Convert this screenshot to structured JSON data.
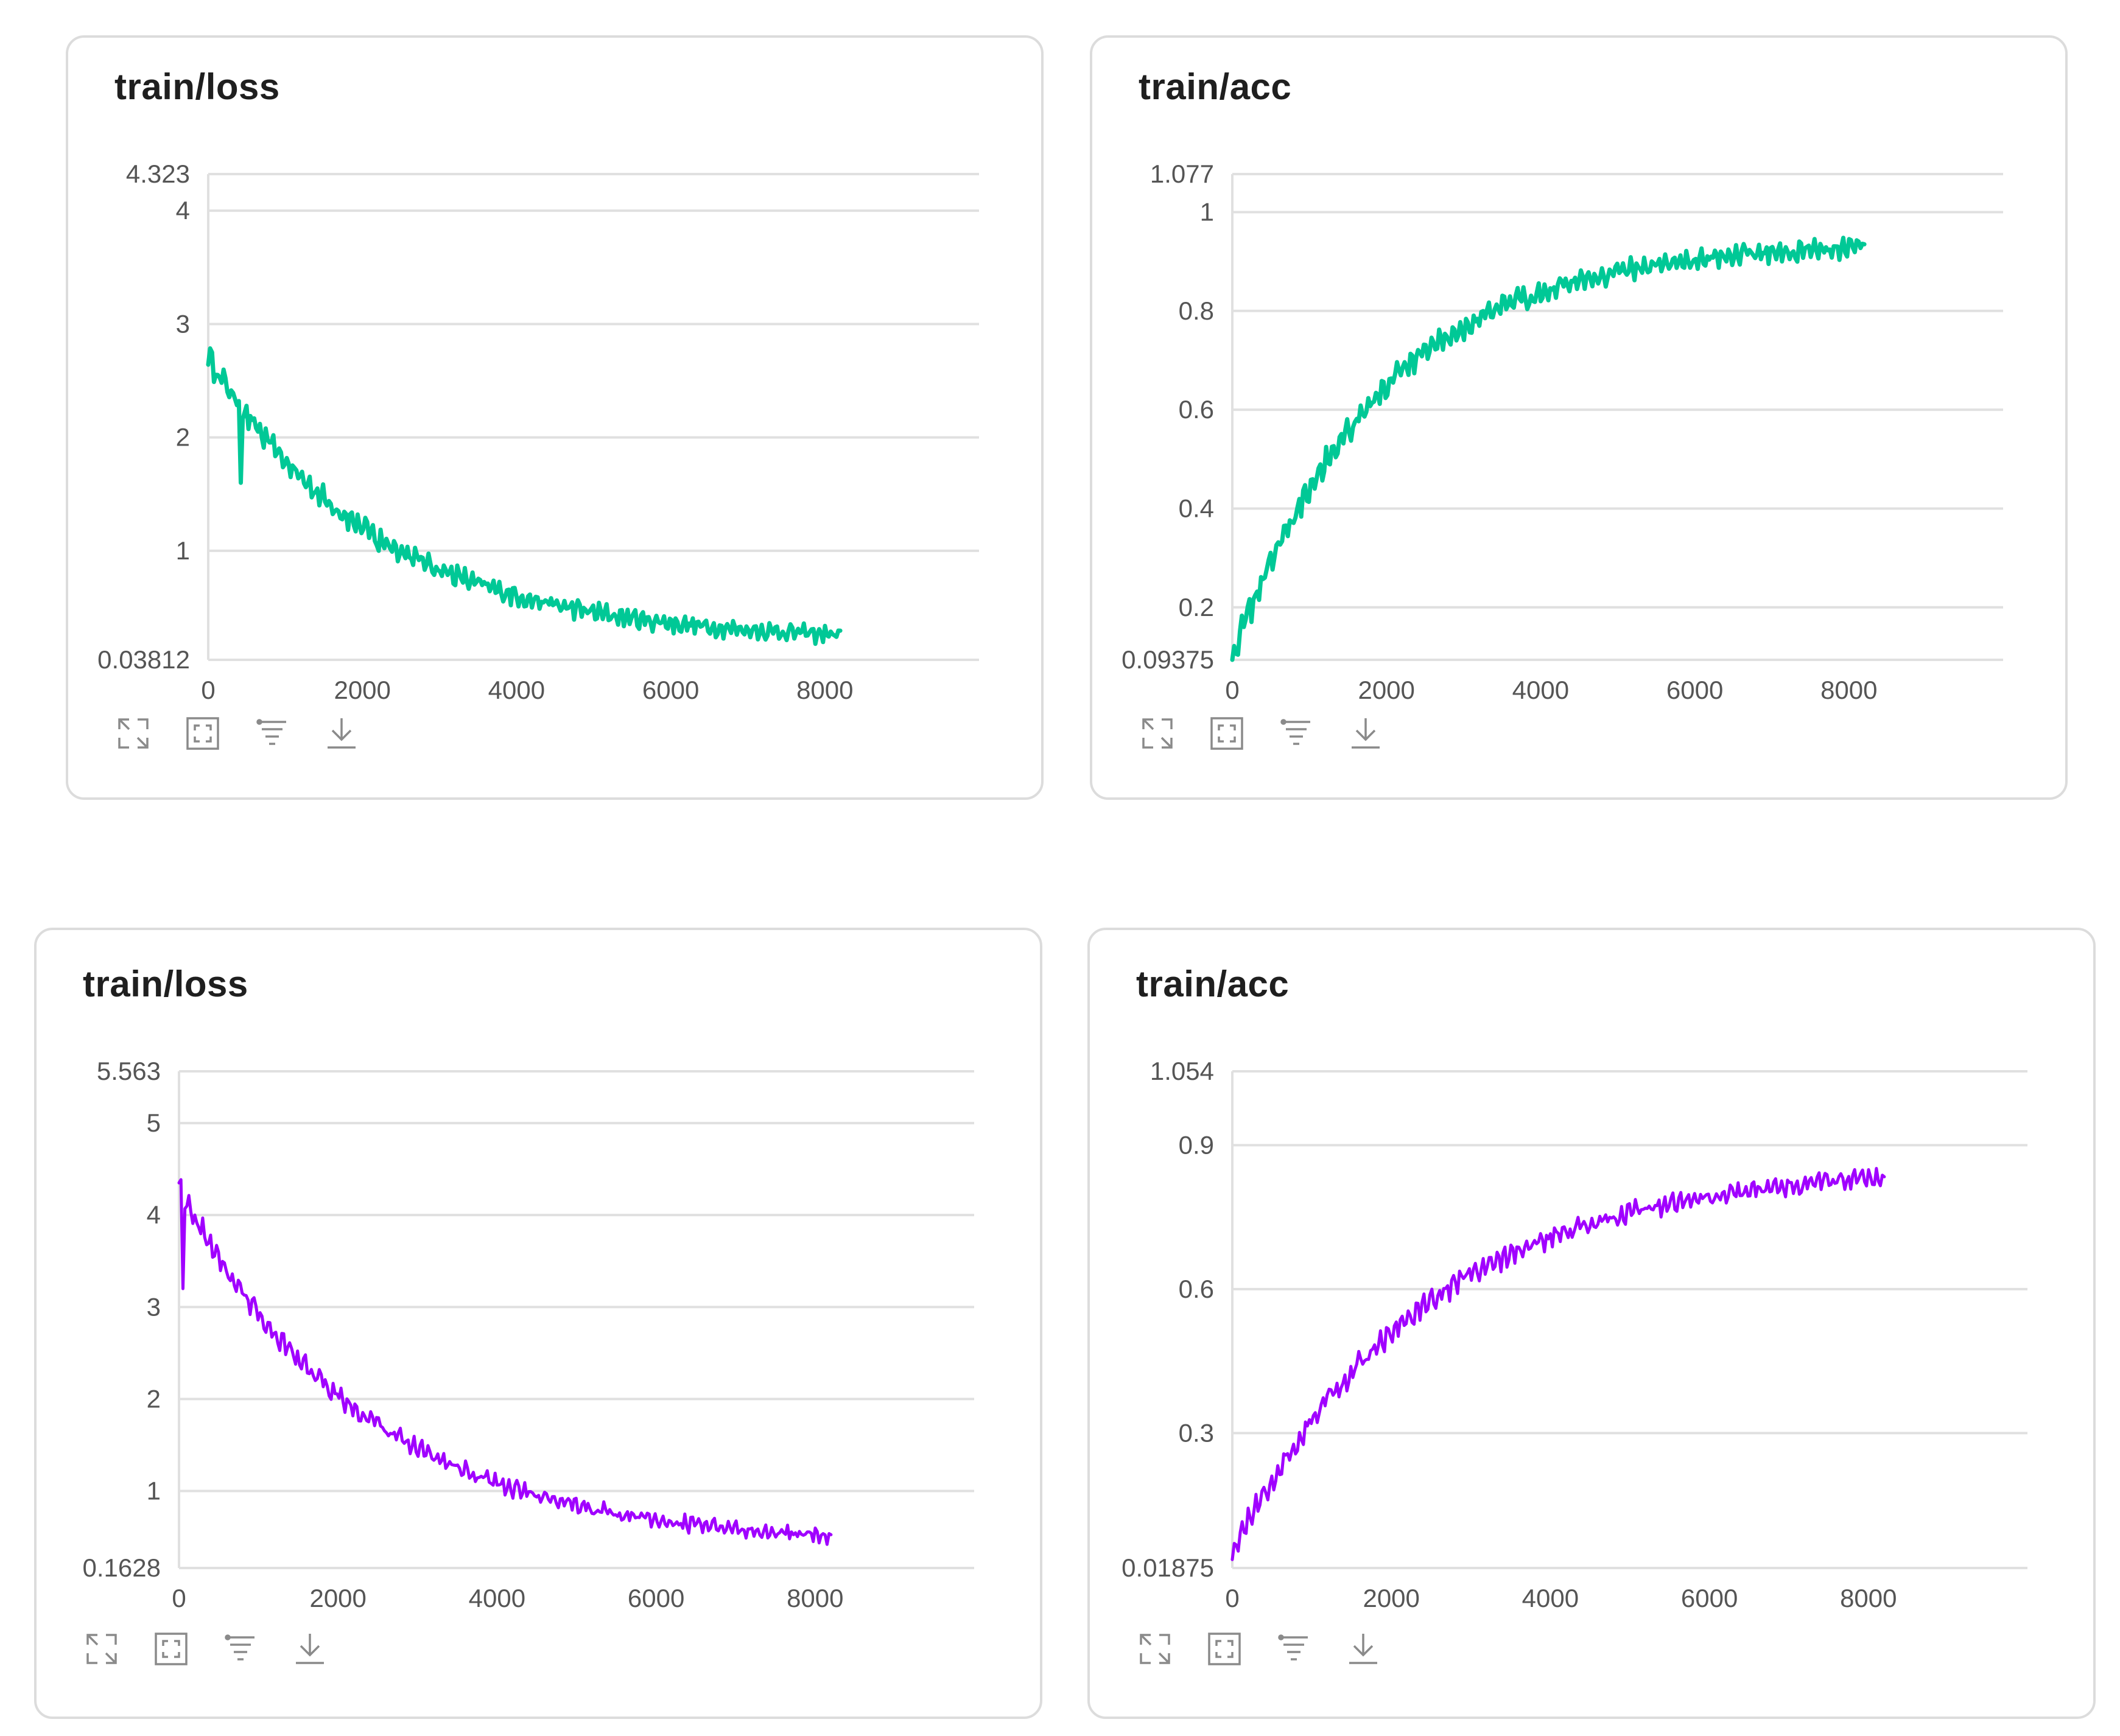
{
  "colors": {
    "green": "#00c896",
    "purple": "#a000ff",
    "grid": "#e0e0e0",
    "tick": "#555555"
  },
  "toolbar": [
    "expand-icon",
    "fit-icon",
    "filter-icon",
    "download-icon"
  ],
  "chart_data": [
    {
      "type": "line",
      "title": "train/loss",
      "color": "#00c896",
      "xlim": [
        0,
        10000
      ],
      "ylim": [
        0.03812,
        4.323
      ],
      "xticks": [
        0,
        2000,
        4000,
        6000,
        8000
      ],
      "yticks": [
        0.03812,
        1,
        2,
        3,
        4,
        4.323
      ],
      "ytick_labels": [
        "0.03812",
        "1",
        "2",
        "3",
        "4",
        "4.323"
      ],
      "xtick_labels": [
        "0",
        "2000",
        "4000",
        "6000",
        "8000"
      ],
      "trend": {
        "start": 2.7,
        "end": 0.2,
        "tau": 2200,
        "noise": 0.12,
        "spike": [
          [
            40,
            2.75
          ],
          [
            240,
            2.4
          ],
          [
            420,
            1.6
          ],
          [
            2200,
            1.0
          ]
        ]
      },
      "x_end": 8200
    },
    {
      "type": "line",
      "title": "train/acc",
      "color": "#00c896",
      "xlim": [
        0,
        10000
      ],
      "ylim": [
        0.09375,
        1.077
      ],
      "xticks": [
        0,
        2000,
        4000,
        6000,
        8000
      ],
      "yticks": [
        0.09375,
        0.2,
        0.4,
        0.6,
        0.8,
        1,
        1.077
      ],
      "ytick_labels": [
        "0.09375",
        "0.2",
        "0.4",
        "0.6",
        "0.8",
        "1",
        "1.077"
      ],
      "xtick_labels": [
        "0",
        "2000",
        "4000",
        "6000",
        "8000"
      ],
      "trend": {
        "start": 0.1,
        "end": 0.94,
        "tau": 1900,
        "noise": 0.03
      },
      "x_end": 8200
    },
    {
      "type": "line",
      "title": "train/loss",
      "color": "#a000ff",
      "xlim": [
        0,
        10000
      ],
      "ylim": [
        0.1628,
        5.563
      ],
      "xticks": [
        0,
        2000,
        4000,
        6000,
        8000
      ],
      "yticks": [
        0.1628,
        1,
        2,
        3,
        4,
        5,
        5.563
      ],
      "ytick_labels": [
        "0.1628",
        "1",
        "2",
        "3",
        "4",
        "5",
        "5.563"
      ],
      "xtick_labels": [
        "0",
        "2000",
        "4000",
        "6000",
        "8000"
      ],
      "trend": {
        "start": 4.3,
        "end": 0.4,
        "tau": 2300,
        "noise": 0.13,
        "spike": [
          [
            10,
            4.35
          ],
          [
            40,
            3.2
          ]
        ]
      },
      "x_end": 8200
    },
    {
      "type": "line",
      "title": "train/acc",
      "color": "#a000ff",
      "xlim": [
        0,
        10000
      ],
      "ylim": [
        0.01875,
        1.054
      ],
      "xticks": [
        0,
        2000,
        4000,
        6000,
        8000
      ],
      "yticks": [
        0.01875,
        0.3,
        0.6,
        0.9,
        1.054
      ],
      "ytick_labels": [
        "0.01875",
        "0.3",
        "0.6",
        "0.9",
        "1.054"
      ],
      "xtick_labels": [
        "0",
        "2000",
        "4000",
        "6000",
        "8000"
      ],
      "trend": {
        "start": 0.05,
        "end": 0.86,
        "tau": 2400,
        "noise": 0.03
      },
      "x_end": 8200
    }
  ]
}
